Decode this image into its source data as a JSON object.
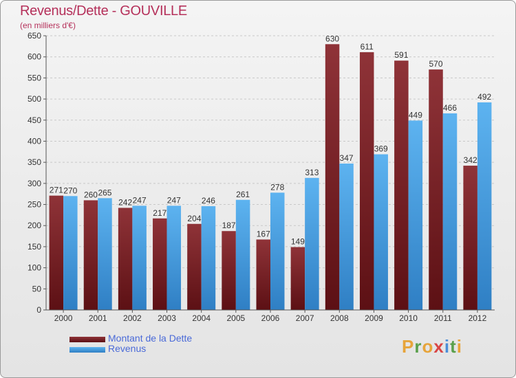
{
  "header": {
    "title": "Revenus/Dette - GOUVILLE",
    "subtitle": "(en milliers d'€)"
  },
  "brand": {
    "logo_letters": [
      "P",
      "r",
      "o",
      "x",
      "i",
      "t",
      "i"
    ],
    "logo_colors": [
      "#e7a43a",
      "#5aa04c",
      "#e7a43a",
      "#d94545",
      "#4a8ed8",
      "#5aa04c",
      "#e7a43a"
    ]
  },
  "chart_data": {
    "type": "bar",
    "categories": [
      "2000",
      "2001",
      "2002",
      "2003",
      "2004",
      "2005",
      "2006",
      "2007",
      "2008",
      "2009",
      "2010",
      "2011",
      "2012"
    ],
    "series": [
      {
        "name": "Montant de la Dette",
        "color": "#7a1f24",
        "values": [
          271,
          260,
          242,
          217,
          204,
          187,
          167,
          149,
          630,
          611,
          591,
          570,
          342
        ]
      },
      {
        "name": "Revenus",
        "color": "#4aa3e6",
        "values": [
          270,
          265,
          247,
          247,
          246,
          261,
          278,
          313,
          347,
          369,
          449,
          466,
          492
        ]
      }
    ],
    "ylim": [
      0,
      650
    ],
    "yticks": [
      0,
      50,
      100,
      150,
      200,
      250,
      300,
      350,
      400,
      450,
      500,
      550,
      600,
      650
    ],
    "grid": true,
    "legend_position": "bottom-left"
  }
}
